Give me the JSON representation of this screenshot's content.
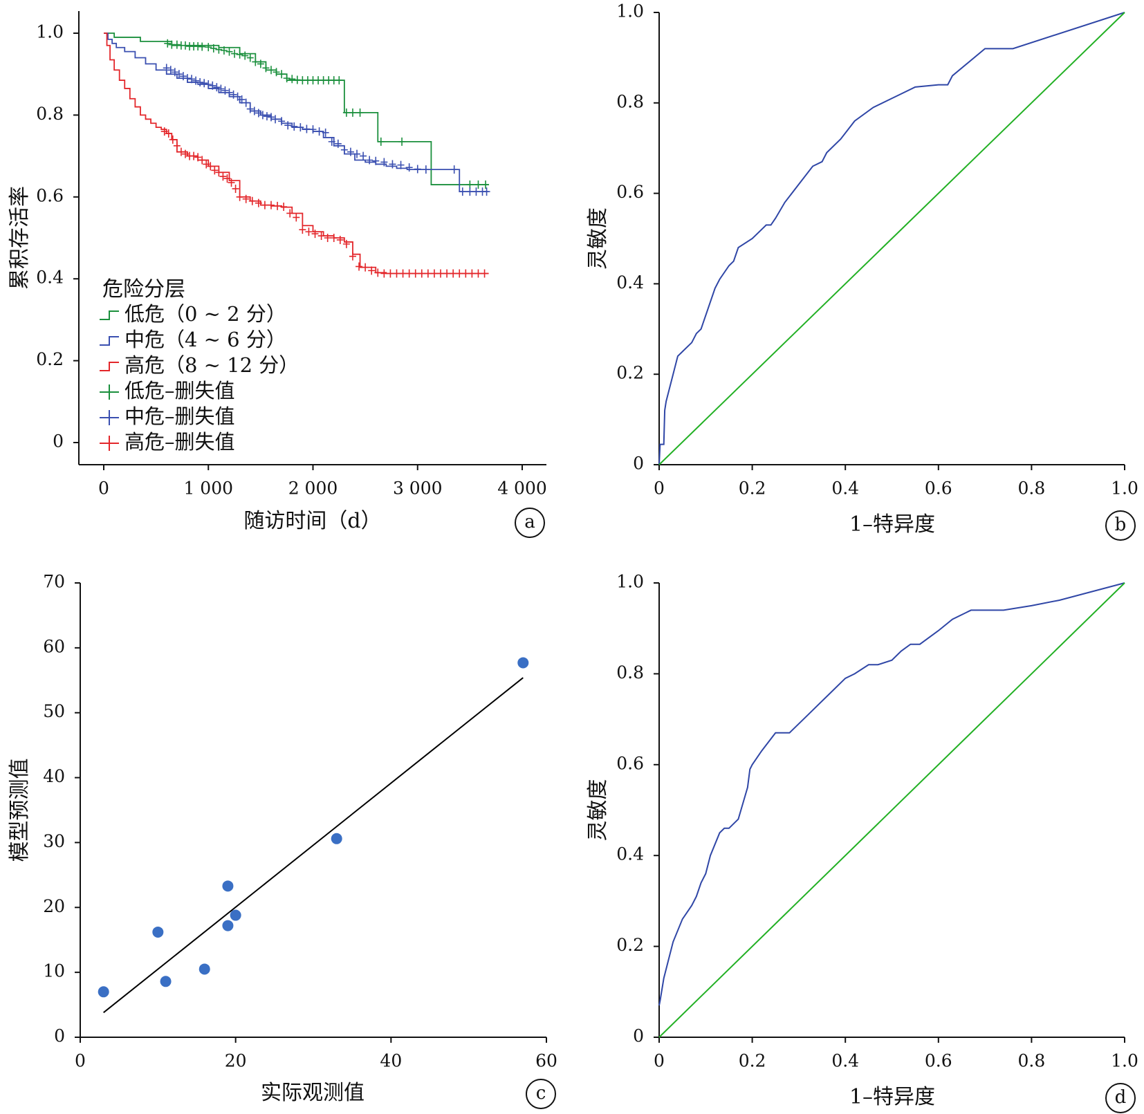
{
  "chart_data": [
    {
      "panel": "a",
      "type": "line",
      "title": "",
      "xlabel": "随访时间（d）",
      "ylabel": "累积存活率",
      "xlim": [
        0,
        4000
      ],
      "ylim": [
        0,
        1.0
      ],
      "xticks": [
        0,
        1000,
        2000,
        3000,
        4000
      ],
      "xtick_labels": [
        "0",
        "1 000",
        "2 000",
        "3 000",
        "4 000"
      ],
      "yticks": [
        0,
        0.2,
        0.4,
        0.6,
        0.8,
        1.0
      ],
      "ytick_labels": [
        "0",
        "0.2",
        "0.4",
        "0.6",
        "0.8",
        "1.0"
      ],
      "grid": false,
      "legend": {
        "placement": "left-center",
        "title": "危险分层",
        "entries": [
          {
            "label": "低危（0 ~ 2 分）",
            "marker": "step",
            "color": "#1a8f3c"
          },
          {
            "label": "中危（4 ~ 6 分）",
            "marker": "step",
            "color": "#3a4fb0"
          },
          {
            "label": "高危（8 ~ 12 分）",
            "marker": "step",
            "color": "#e3262a"
          },
          {
            "label": "低危–删失值",
            "marker": "plus",
            "color": "#1a8f3c"
          },
          {
            "label": "中危–删失值",
            "marker": "plus",
            "color": "#3a4fb0"
          },
          {
            "label": "高危–删失值",
            "marker": "plus",
            "color": "#e3262a"
          }
        ]
      },
      "series": [
        {
          "name": "低危（0 ~ 2 分）",
          "color": "#1a8f3c",
          "x": [
            0,
            100,
            350,
            650,
            1100,
            1300,
            1450,
            1550,
            1650,
            1750,
            2000,
            2270,
            2300,
            2600,
            2620,
            3100,
            3130,
            3680
          ],
          "y": [
            1.0,
            0.99,
            0.98,
            0.97,
            0.965,
            0.95,
            0.93,
            0.91,
            0.9,
            0.885,
            0.885,
            0.885,
            0.806,
            0.806,
            0.735,
            0.735,
            0.63,
            0.63
          ],
          "censored": {
            "x": [
              610,
              650,
              700,
              740,
              780,
              820,
              860,
              900,
              940,
              1000,
              1050,
              1100,
              1150,
              1200,
              1250,
              1300,
              1350,
              1400,
              1450,
              1500,
              1550,
              1600,
              1650,
              1700,
              1750,
              1800,
              1850,
              1900,
              1950,
              2000,
              2050,
              2100,
              2150,
              2200,
              2250,
              2320,
              2380,
              2450,
              2650,
              2850,
              3500,
              3580,
              3650
            ],
            "y": [
              0.975,
              0.972,
              0.972,
              0.97,
              0.97,
              0.968,
              0.968,
              0.968,
              0.967,
              0.966,
              0.963,
              0.96,
              0.958,
              0.955,
              0.95,
              0.948,
              0.945,
              0.94,
              0.93,
              0.925,
              0.915,
              0.91,
              0.905,
              0.9,
              0.89,
              0.888,
              0.886,
              0.885,
              0.885,
              0.885,
              0.885,
              0.885,
              0.885,
              0.885,
              0.885,
              0.806,
              0.806,
              0.806,
              0.735,
              0.735,
              0.63,
              0.63,
              0.63
            ]
          }
        },
        {
          "name": "中危（4 ~ 6 分）",
          "color": "#3a4fb0",
          "x": [
            0,
            40,
            80,
            120,
            200,
            300,
            400,
            500,
            600,
            700,
            800,
            900,
            1000,
            1100,
            1200,
            1300,
            1400,
            1500,
            1600,
            1700,
            1800,
            1900,
            2000,
            2100,
            2200,
            2300,
            2400,
            2500,
            2600,
            2700,
            2800,
            2900,
            3000,
            3100,
            3200,
            3370,
            3400,
            3680
          ],
          "y": [
            1.0,
            0.985,
            0.975,
            0.965,
            0.955,
            0.94,
            0.925,
            0.91,
            0.9,
            0.89,
            0.88,
            0.875,
            0.865,
            0.855,
            0.845,
            0.83,
            0.81,
            0.8,
            0.79,
            0.78,
            0.77,
            0.765,
            0.76,
            0.745,
            0.725,
            0.705,
            0.69,
            0.685,
            0.68,
            0.675,
            0.67,
            0.667,
            0.667,
            0.667,
            0.667,
            0.667,
            0.613,
            0.613
          ],
          "censored": {
            "x": [
              600,
              640,
              680,
              720,
              760,
              800,
              840,
              880,
              920,
              960,
              1000,
              1040,
              1080,
              1120,
              1160,
              1200,
              1240,
              1280,
              1320,
              1360,
              1400,
              1440,
              1480,
              1520,
              1560,
              1600,
              1640,
              1700,
              1760,
              1820,
              1880,
              1940,
              2000,
              2060,
              2120,
              2180,
              2240,
              2300,
              2360,
              2420,
              2480,
              2540,
              2600,
              2680,
              2760,
              2840,
              2920,
              3000,
              3080,
              3350,
              3430,
              3500,
              3560,
              3620,
              3660
            ],
            "y": [
              0.915,
              0.91,
              0.905,
              0.9,
              0.895,
              0.89,
              0.888,
              0.884,
              0.88,
              0.878,
              0.875,
              0.872,
              0.868,
              0.864,
              0.86,
              0.855,
              0.85,
              0.845,
              0.838,
              0.83,
              0.815,
              0.81,
              0.805,
              0.8,
              0.797,
              0.795,
              0.79,
              0.785,
              0.775,
              0.772,
              0.77,
              0.766,
              0.765,
              0.76,
              0.757,
              0.735,
              0.73,
              0.715,
              0.71,
              0.705,
              0.7,
              0.69,
              0.688,
              0.685,
              0.68,
              0.678,
              0.672,
              0.668,
              0.667,
              0.667,
              0.613,
              0.613,
              0.613,
              0.613,
              0.613
            ]
          }
        },
        {
          "name": "高危（8 ~ 12 分）",
          "color": "#e3262a",
          "x": [
            0,
            30,
            60,
            100,
            150,
            200,
            250,
            300,
            350,
            400,
            450,
            500,
            550,
            600,
            650,
            700,
            800,
            900,
            1000,
            1100,
            1200,
            1300,
            1400,
            1500,
            1600,
            1700,
            1800,
            1900,
            2000,
            2100,
            2200,
            2300,
            2380,
            2450,
            2600,
            2700,
            3680
          ],
          "y": [
            1.0,
            0.97,
            0.935,
            0.91,
            0.885,
            0.865,
            0.84,
            0.82,
            0.8,
            0.79,
            0.78,
            0.77,
            0.765,
            0.755,
            0.74,
            0.71,
            0.7,
            0.69,
            0.675,
            0.66,
            0.64,
            0.6,
            0.59,
            0.58,
            0.578,
            0.575,
            0.56,
            0.53,
            0.515,
            0.505,
            0.5,
            0.49,
            0.46,
            0.428,
            0.415,
            0.413,
            0.413
          ],
          "censored": {
            "x": [
              580,
              620,
              660,
              700,
              740,
              780,
              820,
              860,
              900,
              940,
              980,
              1020,
              1060,
              1100,
              1140,
              1180,
              1220,
              1260,
              1300,
              1360,
              1420,
              1480,
              1540,
              1600,
              1660,
              1720,
              1780,
              1840,
              1900,
              1960,
              2020,
              2080,
              2140,
              2200,
              2260,
              2320,
              2380,
              2440,
              2500,
              2560,
              2620,
              2680,
              2740,
              2800,
              2860,
              2920,
              2980,
              3040,
              3100,
              3160,
              3220,
              3280,
              3340,
              3400,
              3460,
              3520,
              3580,
              3640
            ],
            "y": [
              0.76,
              0.755,
              0.74,
              0.725,
              0.71,
              0.705,
              0.7,
              0.7,
              0.697,
              0.69,
              0.68,
              0.675,
              0.665,
              0.66,
              0.65,
              0.645,
              0.635,
              0.62,
              0.6,
              0.595,
              0.59,
              0.585,
              0.58,
              0.58,
              0.578,
              0.576,
              0.56,
              0.55,
              0.52,
              0.515,
              0.51,
              0.505,
              0.5,
              0.5,
              0.495,
              0.485,
              0.455,
              0.43,
              0.428,
              0.42,
              0.415,
              0.413,
              0.413,
              0.413,
              0.413,
              0.413,
              0.413,
              0.413,
              0.413,
              0.413,
              0.413,
              0.413,
              0.413,
              0.413,
              0.413,
              0.413,
              0.413,
              0.413
            ]
          }
        }
      ]
    },
    {
      "panel": "b",
      "type": "line",
      "title": "",
      "xlabel": "1–特异度",
      "ylabel": "灵敏度",
      "xlim": [
        0,
        1.0
      ],
      "ylim": [
        0,
        1.0
      ],
      "xticks": [
        0,
        0.2,
        0.4,
        0.6,
        0.8,
        1.0
      ],
      "xtick_labels": [
        "0",
        "0.2",
        "0.4",
        "0.6",
        "0.8",
        "1.0"
      ],
      "yticks": [
        0,
        0.2,
        0.4,
        0.6,
        0.8,
        1.0
      ],
      "ytick_labels": [
        "0",
        "0.2",
        "0.4",
        "0.6",
        "0.8",
        "1.0"
      ],
      "grid": false,
      "series": [
        {
          "color": "#2f46a6",
          "x": [
            0,
            0.002,
            0.01,
            0.012,
            0.015,
            0.02,
            0.03,
            0.04,
            0.05,
            0.07,
            0.08,
            0.09,
            0.1,
            0.12,
            0.13,
            0.15,
            0.16,
            0.17,
            0.2,
            0.22,
            0.23,
            0.24,
            0.25,
            0.27,
            0.3,
            0.33,
            0.35,
            0.36,
            0.39,
            0.42,
            0.46,
            0.5,
            0.51,
            0.55,
            0.6,
            0.62,
            0.63,
            0.7,
            0.76,
            1.0
          ],
          "y": [
            0,
            0.045,
            0.045,
            0.12,
            0.14,
            0.16,
            0.2,
            0.24,
            0.25,
            0.27,
            0.29,
            0.3,
            0.33,
            0.39,
            0.41,
            0.44,
            0.45,
            0.48,
            0.5,
            0.52,
            0.53,
            0.53,
            0.545,
            0.58,
            0.62,
            0.66,
            0.67,
            0.69,
            0.72,
            0.76,
            0.79,
            0.81,
            0.815,
            0.835,
            0.84,
            0.84,
            0.86,
            0.92,
            0.92,
            1.0
          ]
        },
        {
          "color": "#22b024",
          "x": [
            0,
            1.0
          ],
          "y": [
            0,
            1.0
          ]
        }
      ]
    },
    {
      "panel": "c",
      "type": "scatter",
      "title": "",
      "xlabel": "实际观测值",
      "ylabel": "模型预测值",
      "xlim": [
        0,
        60
      ],
      "ylim": [
        0,
        70
      ],
      "xticks": [
        0,
        20,
        40,
        60
      ],
      "xtick_labels": [
        "0",
        "20",
        "40",
        "60"
      ],
      "yticks": [
        0,
        10,
        20,
        30,
        40,
        50,
        60,
        70
      ],
      "ytick_labels": [
        "0",
        "10",
        "20",
        "30",
        "40",
        "50",
        "60",
        "70"
      ],
      "grid": false,
      "series": [
        {
          "color": "#3a6fc4",
          "x": [
            3,
            10,
            11,
            16,
            19,
            19,
            20,
            33,
            57
          ],
          "y": [
            7,
            16.2,
            8.6,
            10.5,
            23.3,
            17.2,
            18.8,
            30.6,
            57.7
          ]
        }
      ],
      "fit_line": {
        "color": "#000000",
        "x": [
          3,
          57
        ],
        "y": [
          3.8,
          55.4
        ]
      }
    },
    {
      "panel": "d",
      "type": "line",
      "title": "",
      "xlabel": "1–特异度",
      "ylabel": "灵敏度",
      "xlim": [
        0,
        1.0
      ],
      "ylim": [
        0,
        1.0
      ],
      "xticks": [
        0,
        0.2,
        0.4,
        0.6,
        0.8,
        1.0
      ],
      "xtick_labels": [
        "0",
        "0.2",
        "0.4",
        "0.6",
        "0.8",
        "1.0"
      ],
      "yticks": [
        0,
        0.2,
        0.4,
        0.6,
        0.8,
        1.0
      ],
      "ytick_labels": [
        "0",
        "0.2",
        "0.4",
        "0.6",
        "0.8",
        "1.0"
      ],
      "grid": false,
      "series": [
        {
          "color": "#2f46a6",
          "x": [
            0,
            0.002,
            0.01,
            0.02,
            0.03,
            0.05,
            0.07,
            0.08,
            0.09,
            0.1,
            0.11,
            0.13,
            0.14,
            0.15,
            0.16,
            0.17,
            0.19,
            0.195,
            0.2,
            0.22,
            0.25,
            0.25,
            0.28,
            0.32,
            0.36,
            0.4,
            0.42,
            0.45,
            0.47,
            0.5,
            0.52,
            0.54,
            0.56,
            0.6,
            0.63,
            0.67,
            0.74,
            0.8,
            0.86,
            1.0
          ],
          "y": [
            0.07,
            0.08,
            0.13,
            0.17,
            0.21,
            0.26,
            0.29,
            0.31,
            0.34,
            0.36,
            0.4,
            0.45,
            0.46,
            0.46,
            0.47,
            0.48,
            0.55,
            0.59,
            0.6,
            0.63,
            0.67,
            0.67,
            0.67,
            0.71,
            0.75,
            0.79,
            0.8,
            0.82,
            0.82,
            0.83,
            0.85,
            0.865,
            0.865,
            0.895,
            0.92,
            0.94,
            0.94,
            0.95,
            0.962,
            1.0
          ]
        },
        {
          "color": "#22b024",
          "x": [
            0,
            1.0
          ],
          "y": [
            0,
            1.0
          ]
        }
      ]
    }
  ]
}
